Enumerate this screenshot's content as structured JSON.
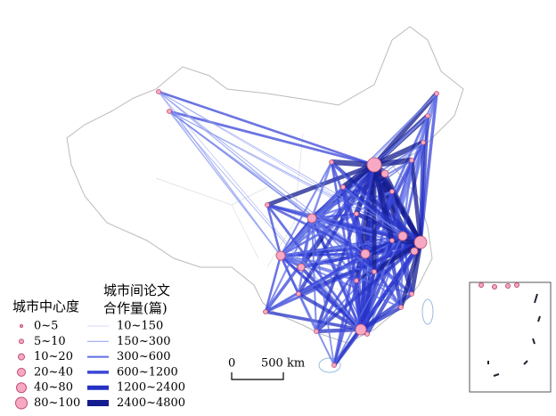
{
  "legend_centrality": {
    "title": "城市中心度",
    "items": [
      "0~5",
      "5~10",
      "10~20",
      "20~40",
      "40~80",
      "80~100"
    ]
  },
  "legend_collaboration": {
    "title_lines": [
      "城市间论文",
      "合作量(篇)"
    ],
    "items": [
      "10~150",
      "150~300",
      "300~600",
      "600~1200",
      "1200~2400",
      "2400~4800"
    ]
  },
  "scale_bar": {
    "start": "0",
    "end": "500 km"
  }
}
